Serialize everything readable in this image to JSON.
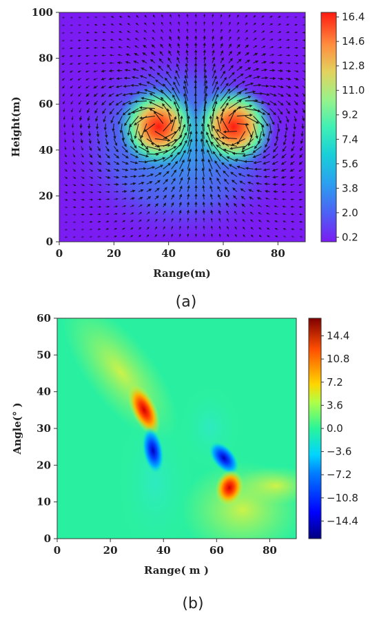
{
  "chart_data": [
    {
      "type": "heatmap",
      "panel_label": "(a)",
      "xlabel": "Range(m)",
      "ylabel": "Height(m)",
      "xlim": [
        0,
        90
      ],
      "ylim": [
        0,
        100
      ],
      "xticks": [
        "0",
        "20",
        "40",
        "60",
        "80"
      ],
      "yticks": [
        "0",
        "20",
        "40",
        "60",
        "80",
        "100"
      ],
      "colorbar_ticks": [
        "0.2",
        "2.0",
        "3.8",
        "5.6",
        "7.4",
        "9.2",
        "11.0",
        "12.8",
        "14.6",
        "16.4"
      ],
      "colormap": "rainbow",
      "vmin": 0.2,
      "vmax": 16.4,
      "background_color": "#7a1cf2",
      "vortices": [
        {
          "x": 37,
          "y": 50,
          "peak": 16.4,
          "rotation": "counterclockwise"
        },
        {
          "x": 64,
          "y": 50,
          "peak": 16.4,
          "rotation": "clockwise"
        }
      ],
      "overlay": "velocity vector arrows"
    },
    {
      "type": "heatmap",
      "panel_label": "(b)",
      "xlabel": "Range( m )",
      "ylabel": "Angle(° )",
      "xlim": [
        0,
        90
      ],
      "ylim": [
        0,
        60
      ],
      "xticks": [
        "0",
        "20",
        "40",
        "60",
        "80"
      ],
      "yticks": [
        "0",
        "10",
        "20",
        "30",
        "40",
        "50",
        "60"
      ],
      "colorbar_ticks": [
        "14.4",
        "10.8",
        "7.2",
        "3.6",
        "0.0",
        "−3.6",
        "−7.2",
        "−10.8",
        "−14.4"
      ],
      "colormap": "jet",
      "vmin": -16,
      "vmax": 16,
      "features": [
        {
          "x": 32,
          "y": 32,
          "value": 14.4,
          "sign": "positive"
        },
        {
          "x": 36,
          "y": 24,
          "value": -14.4,
          "sign": "negative"
        },
        {
          "x": 62,
          "y": 20,
          "value": -12,
          "sign": "negative"
        },
        {
          "x": 65,
          "y": 14,
          "value": 14.4,
          "sign": "positive"
        }
      ]
    }
  ]
}
